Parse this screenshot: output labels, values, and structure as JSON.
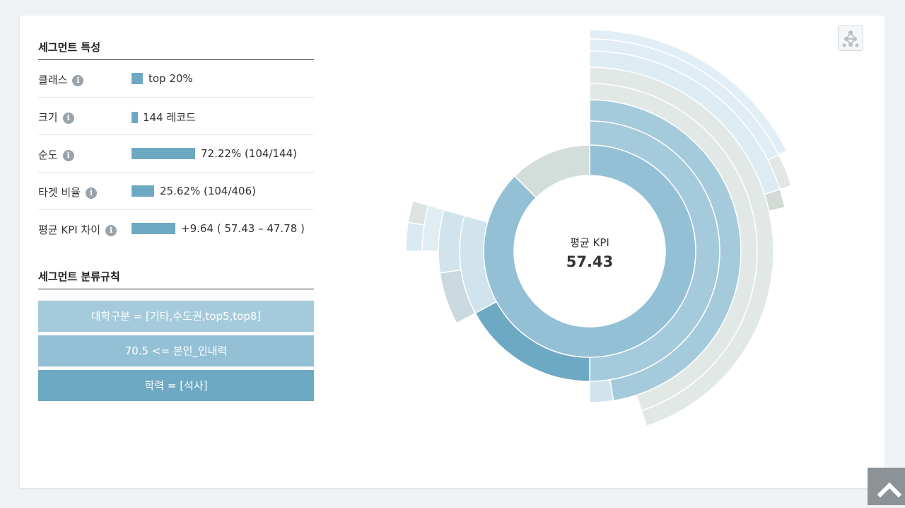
{
  "segment_features": {
    "title": "세그먼트 특성",
    "rows": [
      {
        "label": "클래스",
        "value": "top 20%",
        "bar_fraction": 0.18
      },
      {
        "label": "크기",
        "value": "144 레코드",
        "bar_fraction": 0.1
      },
      {
        "label": "순도",
        "value": "72.22% (104/144)",
        "bar_fraction": 0.7222
      },
      {
        "label": "타겟 비율",
        "value": "25.62% (104/406)",
        "bar_fraction": 0.2562
      },
      {
        "label": "평균 KPI 차이",
        "value": "+9.64 ( 57.43 – 47.78 )",
        "bar_fraction": 0.5
      }
    ]
  },
  "segment_rules": {
    "title": "세그먼트 분류규칙",
    "rules": [
      "대학구분 = [기타,수도권,top5,top8]",
      "70.5 <= 본인_인내력",
      "학력 = [석사]"
    ]
  },
  "center": {
    "label": "평균 KPI",
    "value": "57.43"
  },
  "chart_data": {
    "type": "sunburst",
    "title": "평균 KPI",
    "center_value": 57.43,
    "rings": [
      [
        {
          "start": 0,
          "end": 0.875,
          "color": "#94c0d6"
        },
        {
          "start": 0.875,
          "end": 1.0,
          "color": "#d3ddd9"
        }
      ],
      [
        {
          "start": 0,
          "end": 0.5,
          "color": "#a5cadb"
        },
        {
          "start": 0.5,
          "end": 0.671,
          "color": "#6ea9c4"
        },
        {
          "start": 0.671,
          "end": 0.794,
          "color": "#d1e3ec"
        }
      ],
      [
        {
          "start": 0,
          "end": 0.475,
          "color": "#a5cadb"
        },
        {
          "start": 0.475,
          "end": 0.5,
          "color": "#d1e3ec"
        },
        {
          "start": 0.671,
          "end": 0.727,
          "color": "#c9d9df"
        },
        {
          "start": 0.727,
          "end": 0.794,
          "color": "#d1e3ec"
        }
      ],
      [
        {
          "start": 0,
          "end": 0.45,
          "color": "#e2e8e6"
        },
        {
          "start": 0.75,
          "end": 0.794,
          "color": "#e0edf3"
        }
      ],
      [
        {
          "start": 0,
          "end": 0.45,
          "color": "#e2e8e6"
        },
        {
          "start": 0.75,
          "end": 0.775,
          "color": "#d8e9f1"
        },
        {
          "start": 0.775,
          "end": 0.794,
          "color": "#dde3e0"
        }
      ],
      [
        {
          "start": 0,
          "end": 0.2,
          "color": "#ddebf3"
        },
        {
          "start": 0.2,
          "end": 0.215,
          "color": "#d4dad6"
        }
      ],
      [
        {
          "start": 0,
          "end": 0.175,
          "color": "#e0edf4"
        },
        {
          "start": 0.175,
          "end": 0.2,
          "color": "#e2e7e4"
        }
      ],
      [
        {
          "start": 0,
          "end": 0.175,
          "color": "#e2eef5"
        }
      ]
    ]
  },
  "colors": {
    "accent": "#6ea9c4",
    "accent_light": "#a5cadb",
    "accent_mid": "#94c0d6"
  }
}
